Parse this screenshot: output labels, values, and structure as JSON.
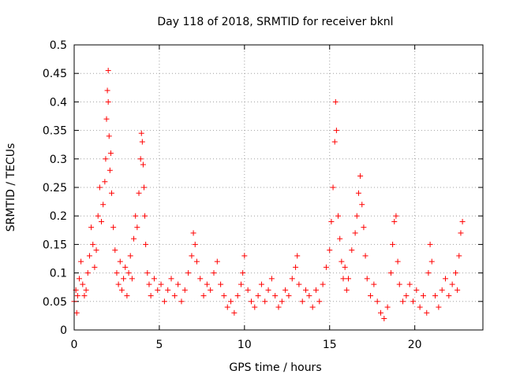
{
  "chart_data": {
    "type": "scatter",
    "title": "Day 118 of 2018, SRMTID for receiver bknl",
    "xlabel": "GPS time / hours",
    "ylabel": "SRMTID / TECUs",
    "xlim": [
      0,
      24
    ],
    "ylim": [
      0,
      0.5
    ],
    "xticks": [
      0,
      5,
      10,
      15,
      20
    ],
    "xtick_labels": [
      "0",
      "5",
      "10",
      "15",
      "20"
    ],
    "yticks": [
      0,
      0.05,
      0.1,
      0.15,
      0.2,
      0.25,
      0.3,
      0.35,
      0.4,
      0.45,
      0.5
    ],
    "ytick_labels": [
      "0",
      "0.05",
      "0.1",
      "0.15",
      "0.2",
      "0.25",
      "0.3",
      "0.35",
      "0.4",
      "0.45",
      "0.5"
    ],
    "grid": true,
    "marker": "+",
    "color": "#ff0000",
    "series": [
      {
        "name": "SRMTID",
        "points": [
          [
            0.0,
            0.05
          ],
          [
            0.1,
            0.07
          ],
          [
            0.15,
            0.03
          ],
          [
            0.2,
            0.06
          ],
          [
            0.3,
            0.09
          ],
          [
            0.4,
            0.12
          ],
          [
            0.5,
            0.08
          ],
          [
            0.6,
            0.06
          ],
          [
            0.7,
            0.07
          ],
          [
            0.8,
            0.1
          ],
          [
            0.9,
            0.13
          ],
          [
            1.0,
            0.18
          ],
          [
            1.1,
            0.15
          ],
          [
            1.2,
            0.11
          ],
          [
            1.3,
            0.14
          ],
          [
            1.4,
            0.2
          ],
          [
            1.5,
            0.25
          ],
          [
            1.6,
            0.19
          ],
          [
            1.7,
            0.22
          ],
          [
            1.8,
            0.26
          ],
          [
            1.85,
            0.3
          ],
          [
            1.9,
            0.37
          ],
          [
            1.95,
            0.42
          ],
          [
            2.0,
            0.455
          ],
          [
            2.0,
            0.4
          ],
          [
            2.05,
            0.34
          ],
          [
            2.1,
            0.28
          ],
          [
            2.15,
            0.31
          ],
          [
            2.2,
            0.24
          ],
          [
            2.3,
            0.18
          ],
          [
            2.4,
            0.14
          ],
          [
            2.5,
            0.1
          ],
          [
            2.6,
            0.08
          ],
          [
            2.7,
            0.12
          ],
          [
            2.8,
            0.07
          ],
          [
            2.9,
            0.09
          ],
          [
            3.0,
            0.11
          ],
          [
            3.1,
            0.06
          ],
          [
            3.2,
            0.1
          ],
          [
            3.3,
            0.13
          ],
          [
            3.4,
            0.09
          ],
          [
            3.5,
            0.16
          ],
          [
            3.6,
            0.2
          ],
          [
            3.7,
            0.18
          ],
          [
            3.8,
            0.24
          ],
          [
            3.9,
            0.3
          ],
          [
            3.95,
            0.345
          ],
          [
            4.0,
            0.33
          ],
          [
            4.05,
            0.29
          ],
          [
            4.1,
            0.25
          ],
          [
            4.15,
            0.2
          ],
          [
            4.2,
            0.15
          ],
          [
            4.3,
            0.1
          ],
          [
            4.4,
            0.08
          ],
          [
            4.5,
            0.06
          ],
          [
            4.7,
            0.09
          ],
          [
            4.9,
            0.07
          ],
          [
            5.1,
            0.08
          ],
          [
            5.3,
            0.05
          ],
          [
            5.5,
            0.07
          ],
          [
            5.7,
            0.09
          ],
          [
            5.9,
            0.06
          ],
          [
            6.1,
            0.08
          ],
          [
            6.3,
            0.05
          ],
          [
            6.5,
            0.07
          ],
          [
            6.7,
            0.1
          ],
          [
            6.9,
            0.13
          ],
          [
            7.0,
            0.17
          ],
          [
            7.1,
            0.15
          ],
          [
            7.2,
            0.12
          ],
          [
            7.4,
            0.09
          ],
          [
            7.6,
            0.06
          ],
          [
            7.8,
            0.08
          ],
          [
            8.0,
            0.07
          ],
          [
            8.2,
            0.1
          ],
          [
            8.4,
            0.12
          ],
          [
            8.6,
            0.08
          ],
          [
            8.8,
            0.06
          ],
          [
            9.0,
            0.04
          ],
          [
            9.2,
            0.05
          ],
          [
            9.4,
            0.03
          ],
          [
            9.6,
            0.06
          ],
          [
            9.8,
            0.08
          ],
          [
            9.9,
            0.1
          ],
          [
            10.0,
            0.13
          ],
          [
            10.2,
            0.07
          ],
          [
            10.4,
            0.05
          ],
          [
            10.6,
            0.04
          ],
          [
            10.8,
            0.06
          ],
          [
            11.0,
            0.08
          ],
          [
            11.2,
            0.05
          ],
          [
            11.4,
            0.07
          ],
          [
            11.6,
            0.09
          ],
          [
            11.8,
            0.06
          ],
          [
            12.0,
            0.04
          ],
          [
            12.2,
            0.05
          ],
          [
            12.4,
            0.07
          ],
          [
            12.6,
            0.06
          ],
          [
            12.8,
            0.09
          ],
          [
            13.0,
            0.11
          ],
          [
            13.1,
            0.13
          ],
          [
            13.2,
            0.08
          ],
          [
            13.4,
            0.05
          ],
          [
            13.6,
            0.07
          ],
          [
            13.8,
            0.06
          ],
          [
            14.0,
            0.04
          ],
          [
            14.2,
            0.07
          ],
          [
            14.4,
            0.05
          ],
          [
            14.6,
            0.08
          ],
          [
            14.8,
            0.11
          ],
          [
            15.0,
            0.14
          ],
          [
            15.1,
            0.19
          ],
          [
            15.2,
            0.25
          ],
          [
            15.3,
            0.33
          ],
          [
            15.35,
            0.4
          ],
          [
            15.4,
            0.35
          ],
          [
            15.5,
            0.2
          ],
          [
            15.6,
            0.16
          ],
          [
            15.7,
            0.12
          ],
          [
            15.8,
            0.09
          ],
          [
            15.9,
            0.11
          ],
          [
            16.0,
            0.07
          ],
          [
            16.1,
            0.09
          ],
          [
            16.3,
            0.14
          ],
          [
            16.5,
            0.17
          ],
          [
            16.6,
            0.2
          ],
          [
            16.7,
            0.24
          ],
          [
            16.8,
            0.27
          ],
          [
            16.9,
            0.22
          ],
          [
            17.0,
            0.18
          ],
          [
            17.1,
            0.13
          ],
          [
            17.2,
            0.09
          ],
          [
            17.4,
            0.06
          ],
          [
            17.6,
            0.08
          ],
          [
            17.8,
            0.05
          ],
          [
            18.0,
            0.03
          ],
          [
            18.2,
            0.02
          ],
          [
            18.4,
            0.04
          ],
          [
            18.6,
            0.1
          ],
          [
            18.7,
            0.15
          ],
          [
            18.8,
            0.19
          ],
          [
            18.9,
            0.2
          ],
          [
            19.0,
            0.12
          ],
          [
            19.1,
            0.08
          ],
          [
            19.3,
            0.05
          ],
          [
            19.5,
            0.06
          ],
          [
            19.7,
            0.08
          ],
          [
            19.9,
            0.05
          ],
          [
            20.1,
            0.07
          ],
          [
            20.3,
            0.04
          ],
          [
            20.5,
            0.06
          ],
          [
            20.7,
            0.03
          ],
          [
            20.8,
            0.1
          ],
          [
            20.9,
            0.15
          ],
          [
            21.0,
            0.12
          ],
          [
            21.2,
            0.06
          ],
          [
            21.4,
            0.04
          ],
          [
            21.6,
            0.07
          ],
          [
            21.8,
            0.09
          ],
          [
            22.0,
            0.06
          ],
          [
            22.2,
            0.08
          ],
          [
            22.4,
            0.1
          ],
          [
            22.5,
            0.07
          ],
          [
            22.6,
            0.13
          ],
          [
            22.7,
            0.17
          ],
          [
            22.8,
            0.19
          ]
        ]
      }
    ]
  }
}
